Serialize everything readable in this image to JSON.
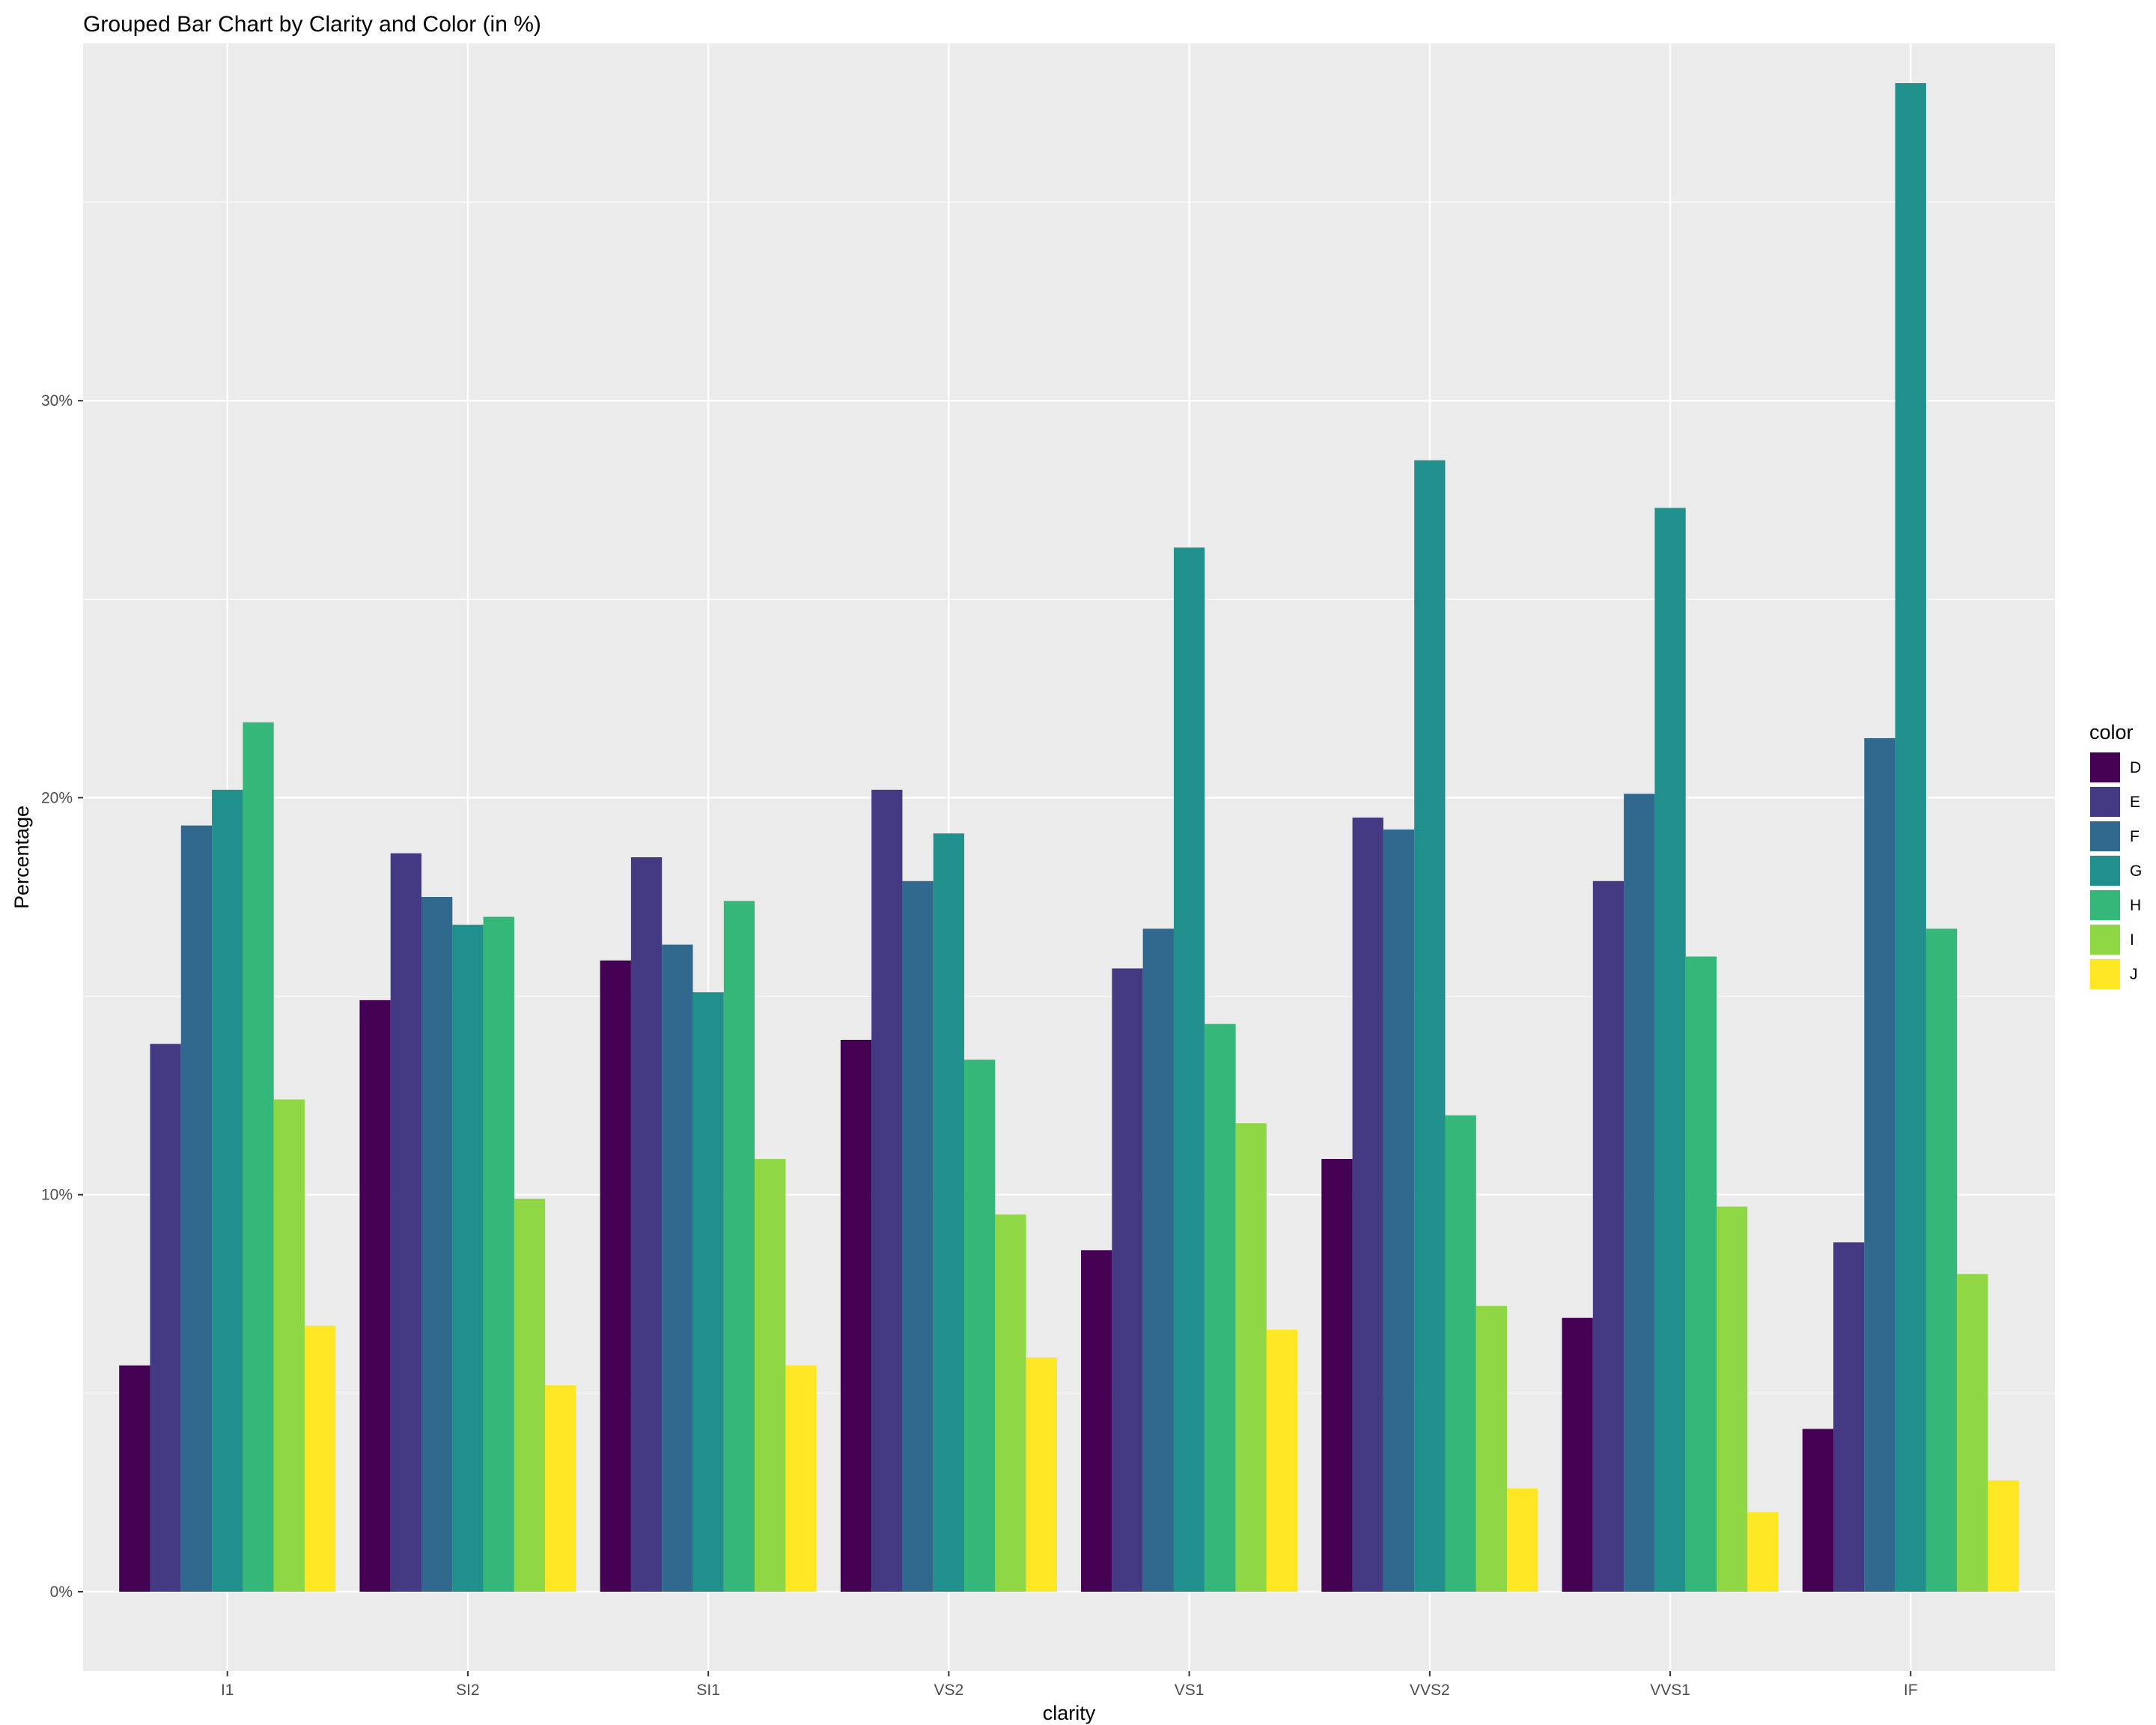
{
  "chart_data": {
    "type": "bar",
    "title": "Grouped Bar Chart by Clarity and Color (in %)",
    "xlabel": "clarity",
    "ylabel": "Percentage",
    "ylim": [
      -2,
      39
    ],
    "yticks": [
      0,
      10,
      20,
      30
    ],
    "ytick_labels": [
      "0%",
      "10%",
      "20%",
      "30%"
    ],
    "grid": true,
    "legend_title": "color",
    "legend_position": "right",
    "categories": [
      "I1",
      "SI2",
      "SI1",
      "VS2",
      "VS1",
      "VVS2",
      "VVS1",
      "IF"
    ],
    "series": [
      {
        "name": "D",
        "color": "#440154",
        "values": [
          5.7,
          14.9,
          15.9,
          13.9,
          8.6,
          10.9,
          6.9,
          4.1
        ]
      },
      {
        "name": "E",
        "color": "#443A83",
        "values": [
          13.8,
          18.6,
          18.5,
          20.2,
          15.7,
          19.5,
          17.9,
          8.8
        ]
      },
      {
        "name": "F",
        "color": "#31688E",
        "values": [
          19.3,
          17.5,
          16.3,
          17.9,
          16.7,
          19.2,
          20.1,
          21.5
        ]
      },
      {
        "name": "G",
        "color": "#21908C",
        "values": [
          20.2,
          16.8,
          15.1,
          19.1,
          26.3,
          28.5,
          27.3,
          38.0
        ]
      },
      {
        "name": "H",
        "color": "#35B779",
        "values": [
          21.9,
          17.0,
          17.4,
          13.4,
          14.3,
          12.0,
          16.0,
          16.7
        ]
      },
      {
        "name": "I",
        "color": "#8FD744",
        "values": [
          12.4,
          9.9,
          10.9,
          9.5,
          11.8,
          7.2,
          9.7,
          8.0
        ]
      },
      {
        "name": "J",
        "color": "#FDE725",
        "values": [
          6.7,
          5.2,
          5.7,
          5.9,
          6.6,
          2.6,
          2.0,
          2.8
        ]
      }
    ],
    "panel_background": "#EBEBEB",
    "grid_color": "#FFFFFF"
  }
}
